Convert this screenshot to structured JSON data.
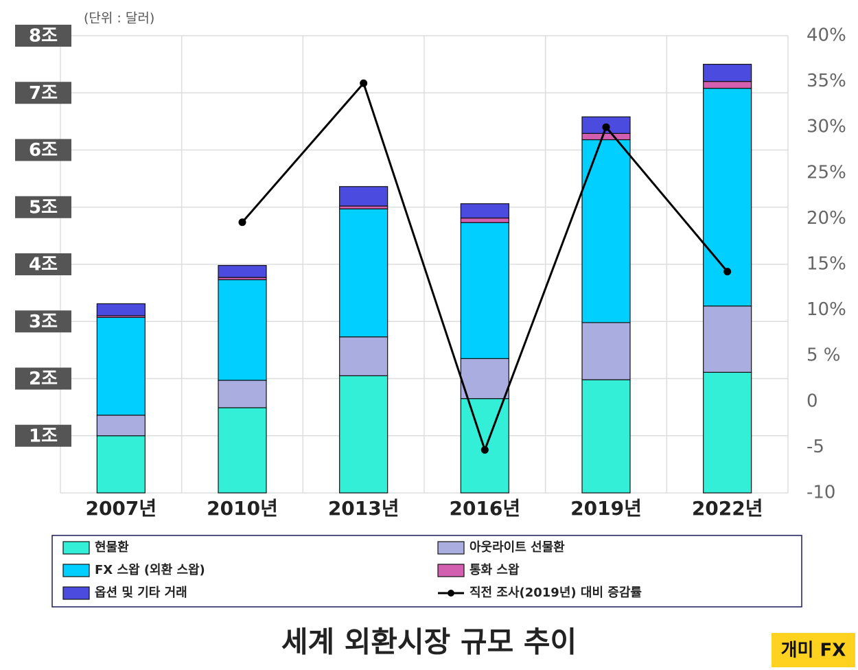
{
  "chart_data": {
    "type": "bar",
    "stacked": true,
    "unit_note": "(단위 : 달러)",
    "title": "세계 외환시장 규모 추이",
    "watermark": "개미 FX",
    "categories": [
      "2007년",
      "2010년",
      "2013년",
      "2016년",
      "2019년",
      "2022년"
    ],
    "series": [
      {
        "name": "현물환",
        "color": "#33efd8",
        "values": [
          1.0,
          1.49,
          2.05,
          1.65,
          1.98,
          2.11
        ]
      },
      {
        "name": "아웃라이트 선물환",
        "color": "#a9addf",
        "values": [
          0.36,
          0.48,
          0.68,
          0.7,
          1.0,
          1.16
        ]
      },
      {
        "name": "FX 스왑 (외환 스왑)",
        "color": "#00cfff",
        "values": [
          1.71,
          1.76,
          2.24,
          2.38,
          3.2,
          3.81
        ]
      },
      {
        "name": "통화 스왑",
        "color": "#d25fb0",
        "values": [
          0.03,
          0.04,
          0.05,
          0.08,
          0.11,
          0.12
        ]
      },
      {
        "name": "옵션 및 기타 거래",
        "color": "#4b4be0",
        "values": [
          0.21,
          0.21,
          0.34,
          0.25,
          0.29,
          0.3
        ]
      },
      {
        "name": "직전 조사(2019년) 대비 증감률",
        "color": "#000000",
        "type": "line",
        "axis": "y2",
        "values": [
          null,
          19.6,
          34.8,
          -5.3,
          30.0,
          14.2
        ]
      }
    ],
    "ylim": [
      0,
      8
    ],
    "yticks": [
      {
        "value": 1,
        "label": "1조"
      },
      {
        "value": 2,
        "label": "2조"
      },
      {
        "value": 3,
        "label": "3조"
      },
      {
        "value": 4,
        "label": "4조"
      },
      {
        "value": 5,
        "label": "5조"
      },
      {
        "value": 6,
        "label": "6조"
      },
      {
        "value": 7,
        "label": "7조"
      },
      {
        "value": 8,
        "label": "8조"
      }
    ],
    "y2lim": [
      -10,
      40
    ],
    "y2ticks": [
      -10,
      -5,
      0,
      {
        "value": 5,
        "label": "5 %"
      },
      {
        "value": 10,
        "label": "10%"
      },
      {
        "value": 15,
        "label": "15%"
      },
      {
        "value": 20,
        "label": "20%"
      },
      {
        "value": 25,
        "label": "25%"
      },
      {
        "value": 30,
        "label": "30%"
      },
      {
        "value": 35,
        "label": "35%"
      },
      {
        "value": 40,
        "label": "40%"
      }
    ],
    "grid": true
  }
}
